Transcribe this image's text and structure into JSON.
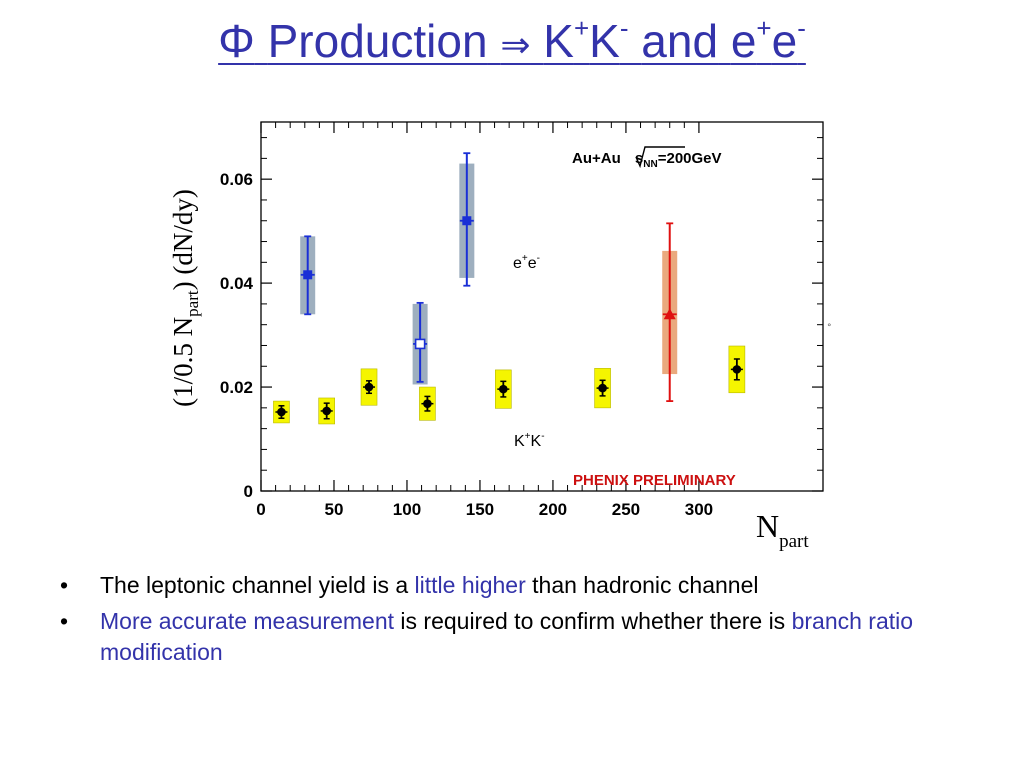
{
  "slide": {
    "title": {
      "phi": "Φ",
      "production": "Production",
      "arrow": "⇒",
      "k1": "K",
      "k1_sup": "+",
      "k2": "K",
      "k2_sup": "-",
      "and": "and",
      "e1": "e",
      "e1_sup": "+",
      "e2": "e",
      "e2_sup": "-"
    },
    "bullets": [
      {
        "marker": "•",
        "pre": "The leptonic channel yield is a ",
        "highlight": "little higher",
        "post": " than hadronic channel"
      },
      {
        "marker": "•",
        "highlight": "More accurate measurement",
        "mid": " is required to confirm whether there is ",
        "highlight2": "branch ratio modification"
      }
    ]
  },
  "chart_data": {
    "type": "scatter",
    "system_label": {
      "pre": "Au+Au ",
      "sqrt": "s",
      "sub": "NN",
      "post": "=200GeV"
    },
    "preliminary_label": "PHENIX PRELIMINARY",
    "ylabel": {
      "pre": "(1/0.5 N",
      "sub": "part",
      "post": ") (dN/dy)"
    },
    "xlabel": {
      "main": "N",
      "sub": "part"
    },
    "xlim": [
      0,
      385
    ],
    "ylim": [
      0,
      0.071
    ],
    "x_ticks": [
      "0",
      "50",
      "100",
      "150",
      "200",
      "250",
      "300"
    ],
    "x_tick_values": [
      0,
      50,
      100,
      150,
      200,
      250,
      300
    ],
    "y_ticks": [
      "0",
      "0.02",
      "0.04",
      "0.06"
    ],
    "y_tick_values": [
      0,
      0.02,
      0.04,
      0.06
    ],
    "colors": {
      "kk": "#000000",
      "kk_box": "#f5f500",
      "ee_blue": "#1a2fd6",
      "ee_blue_box": "#93a6b8",
      "ee_red": "#e01010",
      "ee_red_box": "#e8a070"
    },
    "series": [
      {
        "name": "K+K-",
        "label": {
          "base1": "K",
          "sup1": "+",
          "base2": "K",
          "sup2": "-"
        },
        "points": [
          {
            "x": 14,
            "y": 0.0152,
            "err": 0.0012,
            "sys": 0.0021
          },
          {
            "x": 45,
            "y": 0.0154,
            "err": 0.0015,
            "sys": 0.0025
          },
          {
            "x": 74,
            "y": 0.02,
            "err": 0.0012,
            "sys": 0.0035
          },
          {
            "x": 114,
            "y": 0.0168,
            "err": 0.0014,
            "sys": 0.0032
          },
          {
            "x": 166,
            "y": 0.0196,
            "err": 0.0015,
            "sys": 0.0037
          },
          {
            "x": 234,
            "y": 0.0198,
            "err": 0.0015,
            "sys": 0.0038
          },
          {
            "x": 326,
            "y": 0.0234,
            "err": 0.002,
            "sys": 0.0045
          }
        ]
      },
      {
        "name": "e+e-",
        "label": {
          "base1": "e",
          "sup1": "+",
          "base2": "e",
          "sup2": "-"
        },
        "points": [
          {
            "x": 32,
            "y": 0.0416,
            "lo": 0.034,
            "hi": 0.049,
            "syslo": 0.034,
            "syshi": 0.049,
            "style": "blue-filled"
          },
          {
            "x": 109,
            "y": 0.0283,
            "lo": 0.021,
            "hi": 0.0362,
            "syslo": 0.0205,
            "syshi": 0.036,
            "style": "blue-open"
          },
          {
            "x": 141,
            "y": 0.052,
            "lo": 0.0395,
            "hi": 0.065,
            "syslo": 0.041,
            "syshi": 0.063,
            "style": "blue-filled"
          },
          {
            "x": 280,
            "y": 0.034,
            "lo": 0.0173,
            "hi": 0.0515,
            "syslo": 0.0225,
            "syshi": 0.0462,
            "style": "red-filled"
          }
        ]
      }
    ]
  }
}
